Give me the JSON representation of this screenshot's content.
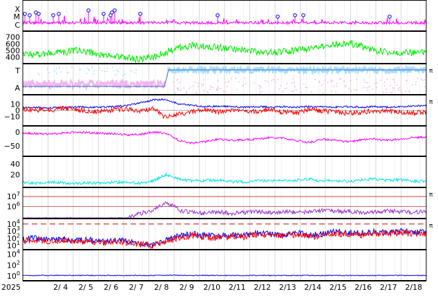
{
  "colors": {
    "magenta": "#ff00ff",
    "green": "#00ee00",
    "blue": "#0000ee",
    "red": "#ff0000",
    "cyan": "#00e5e5",
    "purple": "#9933cc",
    "lightblue": "#a7dcff",
    "pink": "#f2b5ee",
    "black": "#000000",
    "grid": "#bbbbbb"
  },
  "chart_data": {
    "type": "line",
    "x_start": "2025-02-03",
    "x_end": "2025-02-18",
    "year_label": "2025",
    "x_ticks": [
      "2/ 4",
      "2/ 5",
      "2/ 6",
      "2/ 7",
      "2/ 8",
      "2/ 9",
      "2/10",
      "2/11",
      "2/12",
      "2/13",
      "2/14",
      "2/15",
      "2/16",
      "2/17",
      "2/18"
    ],
    "panels": [
      {
        "id": "class",
        "y_labels": [
          "X",
          "M",
          "C"
        ],
        "series": [
          {
            "color": "magenta",
            "style": "flare"
          }
        ]
      },
      {
        "id": "speed",
        "y_ticks": [
          "700",
          "600",
          "500",
          "400"
        ],
        "ylim": [
          330,
          760
        ],
        "series": [
          {
            "color": "green",
            "values": [
              430,
              440,
              455,
              470,
              500,
              470,
              430,
              420,
              380,
              370,
              390,
              470,
              540,
              570,
              560,
              540,
              530,
              500,
              480,
              470,
              480,
              500,
              530,
              550,
              590,
              610,
              570,
              500,
              480,
              470,
              470,
              460
            ]
          }
        ]
      },
      {
        "id": "ta",
        "y_labels": [
          "T",
          "A"
        ],
        "right_label": "π",
        "series": [
          {
            "color": "lightblue"
          },
          {
            "color": "pink"
          }
        ]
      },
      {
        "id": "bz",
        "y_ticks": [
          "10",
          "0",
          "−10"
        ],
        "ylim": [
          -22,
          22
        ],
        "right_label": "π",
        "series": [
          {
            "color": "blue",
            "values": [
              4,
              5,
              4,
              5,
              6,
              5,
              5,
              6,
              8,
              12,
              17,
              18,
              10,
              8,
              6,
              7,
              6,
              5,
              6,
              5,
              6,
              5,
              6,
              6,
              5,
              6,
              5,
              6,
              5,
              6,
              7,
              8
            ]
          },
          {
            "color": "red",
            "values": [
              2,
              1,
              0,
              3,
              2,
              -2,
              -1,
              1,
              2,
              -3,
              4,
              -12,
              -6,
              -2,
              1,
              -3,
              -1,
              0,
              -2,
              2,
              -3,
              -4,
              1,
              -1,
              -2,
              -5,
              -3,
              -1,
              -2,
              -3,
              -4,
              -3
            ]
          }
        ]
      },
      {
        "id": "by",
        "y_ticks": [
          "0",
          "−50"
        ],
        "ylim": [
          -80,
          15
        ],
        "series": [
          {
            "color": "magenta",
            "values": [
              -3,
              -5,
              -8,
              -4,
              0,
              -2,
              -4,
              -6,
              -10,
              -8,
              0,
              -5,
              -30,
              -40,
              -35,
              -25,
              -30,
              -28,
              -25,
              -20,
              -22,
              -30,
              -38,
              -25,
              -30,
              -35,
              -28,
              -25,
              -30,
              -25,
              -20,
              -18
            ]
          }
        ]
      },
      {
        "id": "density",
        "y_ticks": [
          "40",
          "20"
        ],
        "ylim": [
          0,
          50
        ],
        "series": [
          {
            "color": "cyan",
            "values": [
              5,
              4,
              6,
              5,
              3,
              5,
              4,
              6,
              5,
              4,
              8,
              20,
              12,
              8,
              9,
              10,
              7,
              6,
              9,
              8,
              10,
              9,
              12,
              8,
              9,
              7,
              10,
              12,
              9,
              11,
              8,
              7
            ]
          }
        ]
      },
      {
        "id": "temp",
        "y_ticks": [
          "10^7",
          "10^6"
        ],
        "ylim": [
          100000,
          50000000
        ],
        "right_label": "π",
        "series": [
          {
            "color": "purple",
            "values": [
              50000,
              50000,
              50000,
              50000,
              50000,
              50000,
              50000,
              50000,
              50000,
              200000,
              350000,
              2000000,
              400000,
              250000,
              200000,
              300000,
              200000,
              250000,
              300000,
              250000,
              300000,
              250000,
              300000,
              400000,
              350000,
              300000,
              250000,
              300000,
              350000,
              300000,
              250000,
              300000
            ]
          }
        ]
      },
      {
        "id": "electrons",
        "y_ticks": [
          "10^4",
          "10^3",
          "10^2",
          "10^1"
        ],
        "ylim": [
          5,
          30000
        ],
        "right_label": "π",
        "series": [
          {
            "color": "blue",
            "values": [
              60,
              100,
              50,
              80,
              40,
              60,
              30,
              50,
              40,
              20,
              10,
              60,
              200,
              400,
              250,
              180,
              300,
              250,
              500,
              400,
              300,
              600,
              250,
              400,
              800,
              600,
              500,
              800,
              600,
              900,
              700,
              800
            ]
          },
          {
            "color": "red",
            "values": [
              40,
              70,
              30,
              60,
              25,
              40,
              20,
              30,
              25,
              15,
              8,
              40,
              100,
              250,
              150,
              100,
              200,
              150,
              300,
              250,
              200,
              350,
              150,
              250,
              500,
              350,
              300,
              500,
              400,
              600,
              450,
              500
            ]
          }
        ]
      },
      {
        "id": "protons",
        "y_ticks": [
          "10^4",
          "10^2",
          "10^0"
        ],
        "ylim": [
          0.3,
          30000
        ],
        "series": [
          {
            "color": "blue",
            "values": [
              1.2,
              1.2,
              1.2,
              1.2,
              1.2,
              1.2,
              1.2,
              1.2,
              1.2,
              1.2,
              1.2,
              1.3,
              1.3,
              1.2,
              1.2,
              1.2,
              1.2,
              1.2,
              1.2,
              1.2,
              1.2,
              1.2,
              1.2,
              1.2,
              1.2,
              1.2,
              1.2,
              1.2,
              1.2,
              1.2,
              1.2,
              1.2
            ]
          }
        ]
      }
    ]
  }
}
